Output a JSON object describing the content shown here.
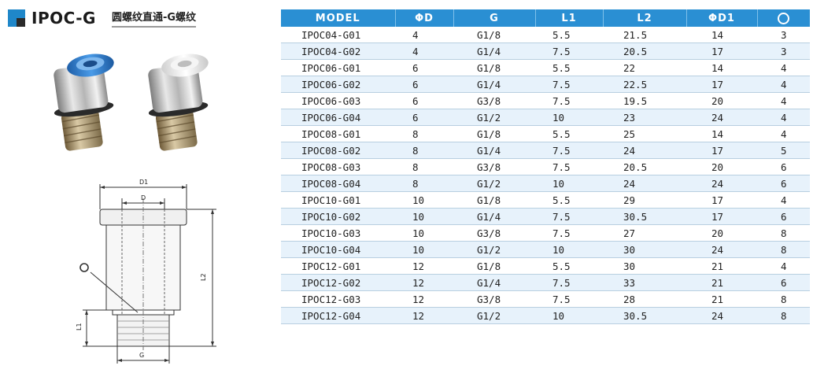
{
  "header": {
    "title": "IPOC-G",
    "subtitle": "圆螺纹直通-G螺纹"
  },
  "colors": {
    "accent": "#2a8fd3",
    "stripe": "#e7f2fb",
    "cap_blue": "#2f7fd0",
    "cap_white": "#f1f1f1"
  },
  "drawing": {
    "labels": {
      "d1": "D1",
      "d": "D",
      "l2": "L2",
      "l1": "L1",
      "g": "G"
    }
  },
  "table": {
    "columns": [
      "MODEL",
      "ΦD",
      "G",
      "L1",
      "L2",
      "ΦD1",
      ""
    ],
    "rows": [
      [
        "IPOC04-G01",
        "4",
        "G1/8",
        "5.5",
        "21.5",
        "14",
        "3"
      ],
      [
        "IPOC04-G02",
        "4",
        "G1/4",
        "7.5",
        "20.5",
        "17",
        "3"
      ],
      [
        "IPOC06-G01",
        "6",
        "G1/8",
        "5.5",
        "22",
        "14",
        "4"
      ],
      [
        "IPOC06-G02",
        "6",
        "G1/4",
        "7.5",
        "22.5",
        "17",
        "4"
      ],
      [
        "IPOC06-G03",
        "6",
        "G3/8",
        "7.5",
        "19.5",
        "20",
        "4"
      ],
      [
        "IPOC06-G04",
        "6",
        "G1/2",
        "10",
        "23",
        "24",
        "4"
      ],
      [
        "IPOC08-G01",
        "8",
        "G1/8",
        "5.5",
        "25",
        "14",
        "4"
      ],
      [
        "IPOC08-G02",
        "8",
        "G1/4",
        "7.5",
        "24",
        "17",
        "5"
      ],
      [
        "IPOC08-G03",
        "8",
        "G3/8",
        "7.5",
        "20.5",
        "20",
        "6"
      ],
      [
        "IPOC08-G04",
        "8",
        "G1/2",
        "10",
        "24",
        "24",
        "6"
      ],
      [
        "IPOC10-G01",
        "10",
        "G1/8",
        "5.5",
        "29",
        "17",
        "4"
      ],
      [
        "IPOC10-G02",
        "10",
        "G1/4",
        "7.5",
        "30.5",
        "17",
        "6"
      ],
      [
        "IPOC10-G03",
        "10",
        "G3/8",
        "7.5",
        "27",
        "20",
        "8"
      ],
      [
        "IPOC10-G04",
        "10",
        "G1/2",
        "10",
        "30",
        "24",
        "8"
      ],
      [
        "IPOC12-G01",
        "12",
        "G1/8",
        "5.5",
        "30",
        "21",
        "4"
      ],
      [
        "IPOC12-G02",
        "12",
        "G1/4",
        "7.5",
        "33",
        "21",
        "6"
      ],
      [
        "IPOC12-G03",
        "12",
        "G3/8",
        "7.5",
        "28",
        "21",
        "8"
      ],
      [
        "IPOC12-G04",
        "12",
        "G1/2",
        "10",
        "30.5",
        "24",
        "8"
      ]
    ]
  }
}
